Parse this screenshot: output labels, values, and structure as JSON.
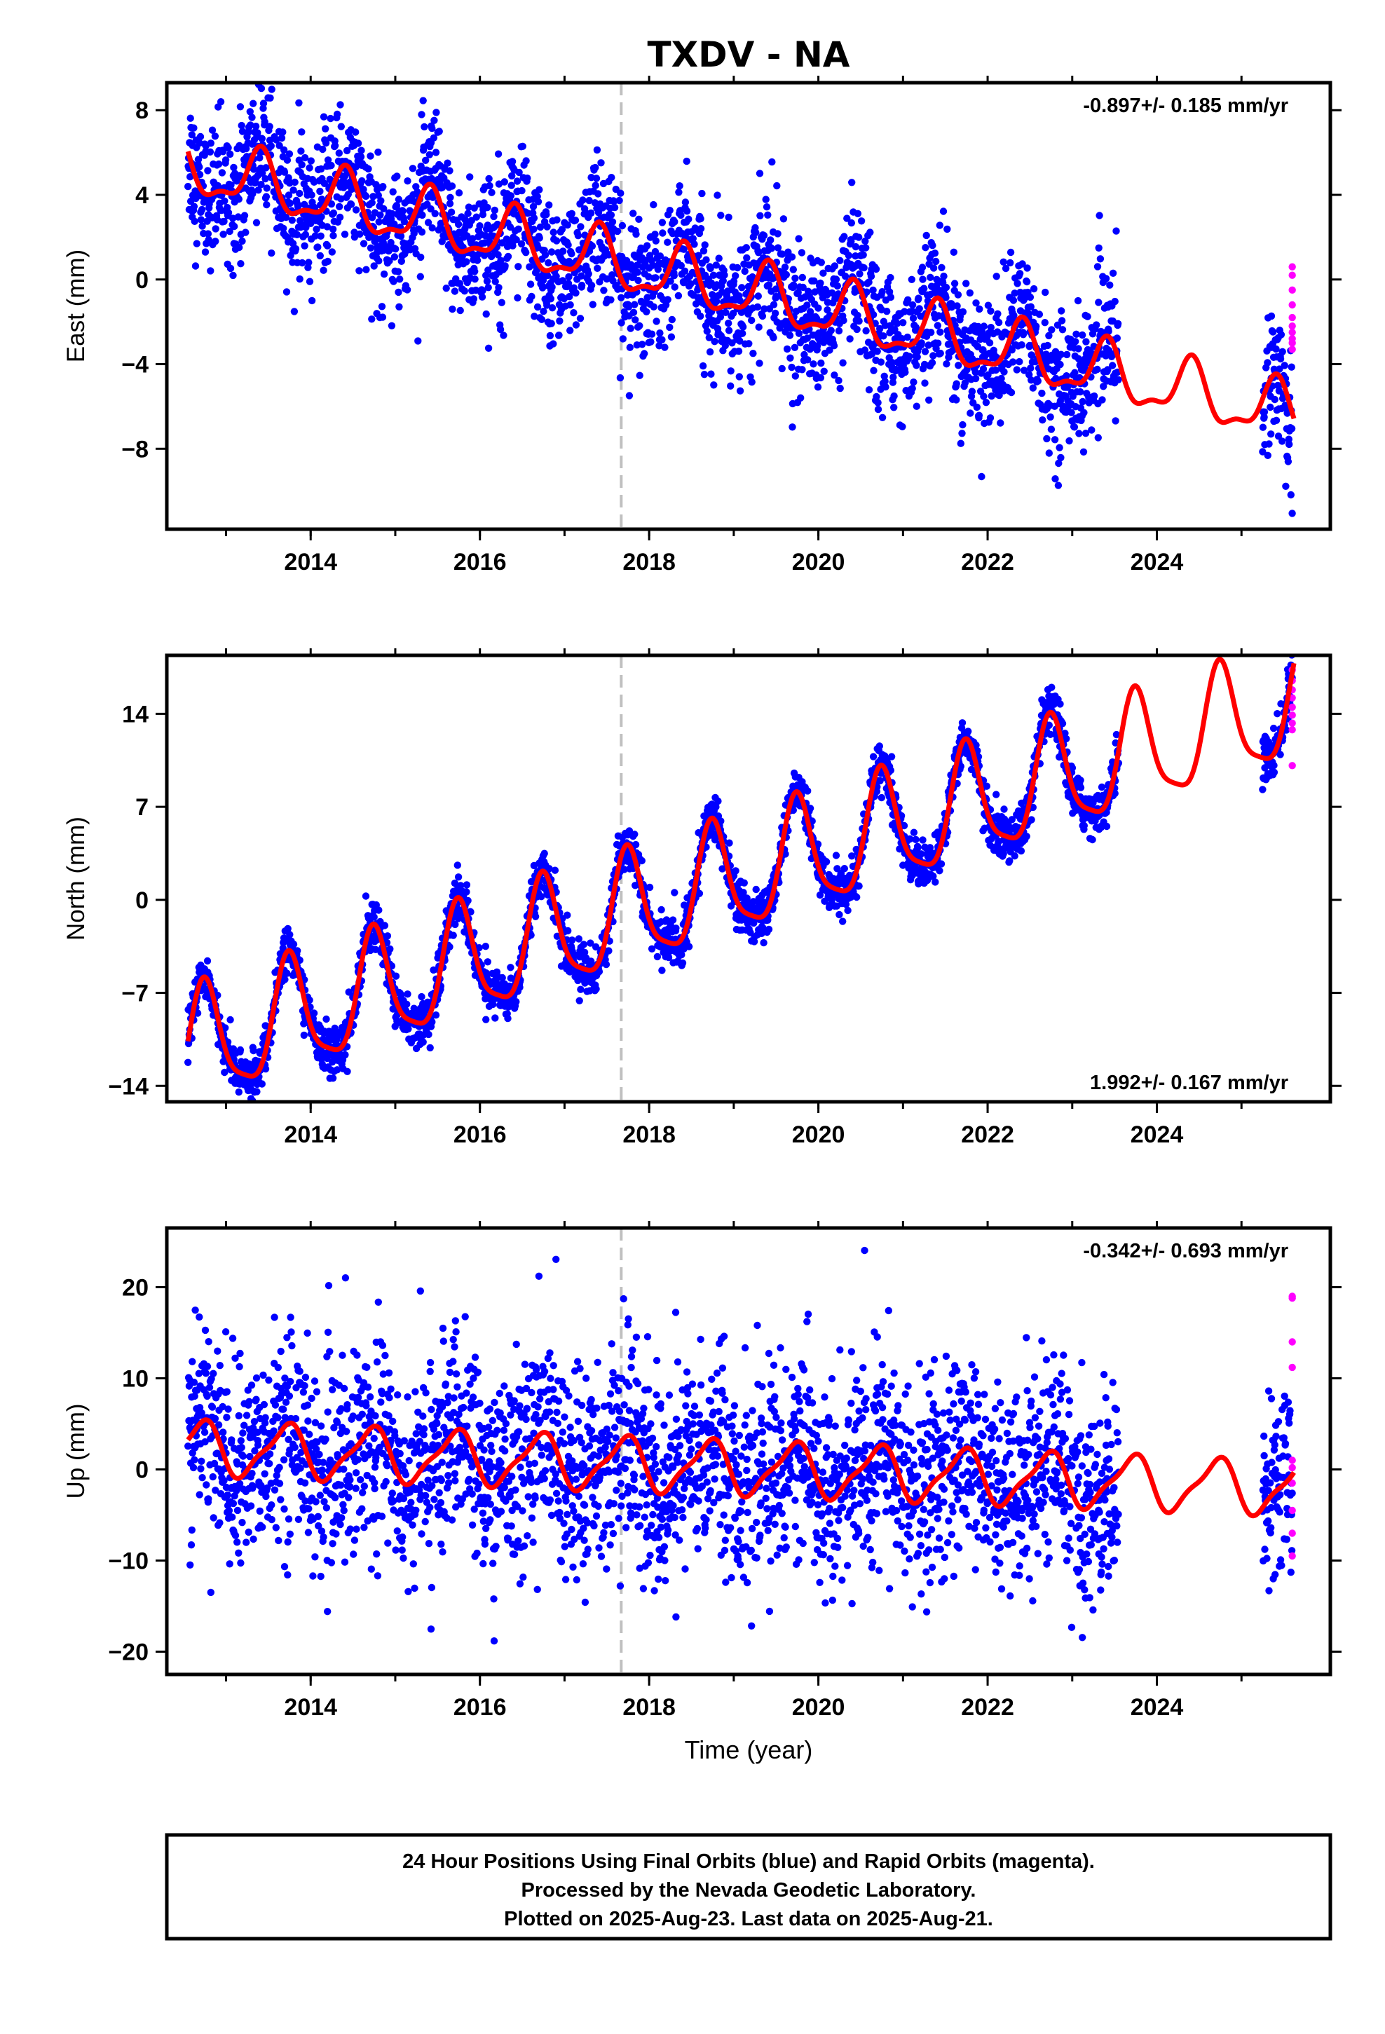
{
  "title": "TXDV - NA",
  "colors": {
    "final_orbits": "#0000ff",
    "rapid_orbits": "#ff00ff",
    "model_fit": "#ff0000",
    "event_line": "#c0c0c0"
  },
  "chart_data": [
    {
      "type": "scatter",
      "component": "East",
      "ylabel": "East (mm)",
      "ylim": [
        -11.8,
        9.3
      ],
      "xlim": [
        2012.3,
        2026.05
      ],
      "yticks": [
        8,
        4,
        0,
        -4,
        -8
      ],
      "xticks": [
        2014,
        2016,
        2018,
        2020,
        2022,
        2024
      ],
      "rate_label": "-0.897+/- 0.185 mm/yr",
      "rate_position": "top-right",
      "rate": -0.897,
      "event_line_x": 2017.67,
      "fit": {
        "intercept_2018": 0.4,
        "annual_amp": 1.3,
        "annual_phase": 0.15,
        "semiannual_amp": 0.5,
        "semiannual_phase": 0.3
      },
      "final_data_range": [
        [
          2012.55,
          2023.55
        ],
        [
          2025.25,
          2025.6
        ]
      ],
      "final_scatter_sd": 1.6,
      "rapid_data": {
        "x": [
          2025.6,
          2025.6,
          2025.6,
          2025.6,
          2025.6,
          2025.6,
          2025.6,
          2025.6,
          2025.6,
          2025.6
        ],
        "y": [
          0.6,
          0.2,
          -0.5,
          -1.2,
          -1.8,
          -2.2,
          -2.5,
          -2.8,
          -3.0,
          -3.3
        ]
      }
    },
    {
      "type": "scatter",
      "component": "North",
      "ylabel": "North (mm)",
      "ylim": [
        -15.2,
        18.4
      ],
      "xlim": [
        2012.3,
        2026.05
      ],
      "yticks": [
        14,
        7,
        0,
        -7,
        -14
      ],
      "xticks": [
        2014,
        2016,
        2018,
        2020,
        2022,
        2024
      ],
      "rate_label": "1.992+/- 0.167 mm/yr",
      "rate_position": "bottom-right",
      "rate": 1.992,
      "event_line_x": 2017.67,
      "fit": {
        "intercept_2018": -0.5,
        "annual_amp": 4.2,
        "annual_phase": 0.5,
        "semiannual_amp": 1.0,
        "semiannual_phase": 0.1
      },
      "final_data_range": [
        [
          2012.55,
          2023.55
        ],
        [
          2025.25,
          2025.6
        ]
      ],
      "final_scatter_sd": 0.9,
      "rapid_data": {
        "x": [
          2025.6,
          2025.6,
          2025.6,
          2025.6,
          2025.6,
          2025.6,
          2025.6,
          2025.6,
          2025.6
        ],
        "y": [
          17.3,
          16.5,
          15.8,
          15.2,
          14.5,
          13.9,
          13.3,
          12.8,
          10.1
        ]
      }
    },
    {
      "type": "scatter",
      "component": "Up",
      "ylabel": "Up (mm)",
      "ylim": [
        -22.5,
        26.5
      ],
      "xlim": [
        2012.3,
        2026.05
      ],
      "yticks": [
        20,
        10,
        0,
        -10,
        -20
      ],
      "xticks": [
        2014,
        2016,
        2018,
        2020,
        2022,
        2024
      ],
      "xlabel": "Time (year)",
      "rate_label": "-0.342+/- 0.693 mm/yr",
      "rate_position": "top-right",
      "rate": -0.342,
      "event_line_x": 2017.67,
      "fit": {
        "intercept_2018": 0.5,
        "annual_amp": 2.8,
        "annual_phase": 0.45,
        "semiannual_amp": 0.8,
        "semiannual_phase": 0.2
      },
      "final_data_range": [
        [
          2012.55,
          2023.55
        ],
        [
          2025.25,
          2025.6
        ]
      ],
      "final_scatter_sd": 5.5,
      "rapid_data": {
        "x": [
          2025.6,
          2025.6,
          2025.6,
          2025.6,
          2025.6,
          2025.6,
          2025.6,
          2025.6,
          2025.6,
          2025.6
        ],
        "y": [
          19.0,
          18.8,
          14.0,
          11.2,
          1.0,
          0.2,
          -1.5,
          -4.5,
          -7.0,
          -9.5
        ]
      }
    }
  ],
  "footer": {
    "line1": "24 Hour Positions Using Final Orbits (blue) and Rapid Orbits (magenta).",
    "line2": "Processed by the Nevada Geodetic Laboratory.",
    "line3": "Plotted on 2025-Aug-23. Last data on 2025-Aug-21."
  }
}
